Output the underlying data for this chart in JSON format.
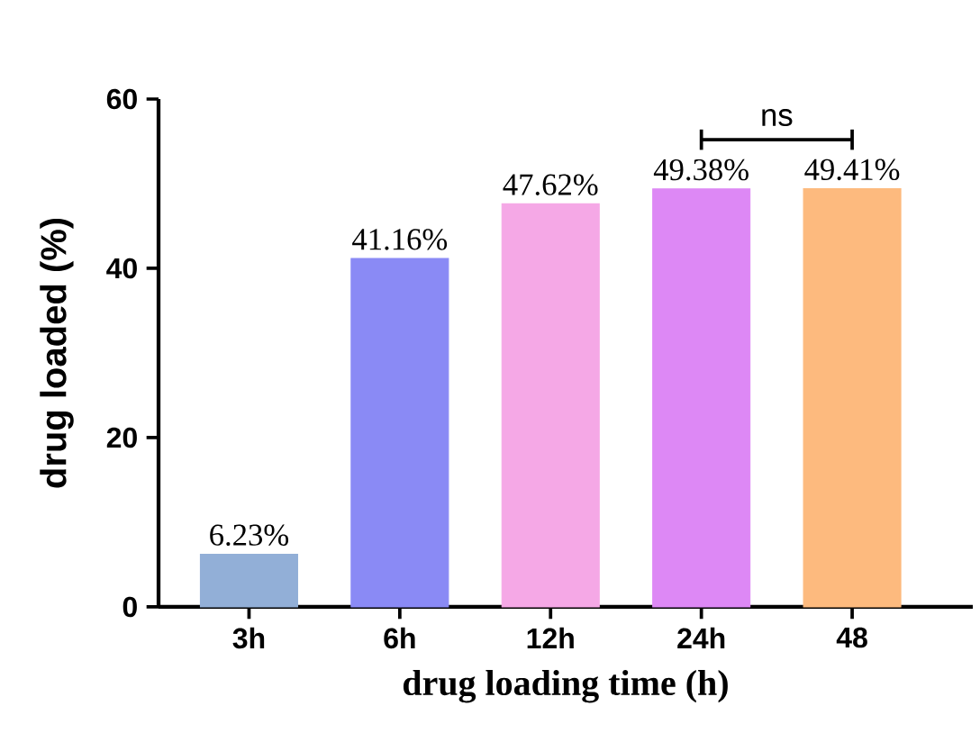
{
  "chart_data": {
    "type": "bar",
    "xlabel": "drug loading time (h)",
    "ylabel": "drug loaded (%)",
    "categories": [
      "3h",
      "6h",
      "12h",
      "24h",
      "48"
    ],
    "values": [
      6.23,
      41.16,
      47.62,
      49.38,
      49.41
    ],
    "value_labels": [
      "6.23%",
      "41.16%",
      "47.62%",
      "49.38%",
      "49.41%"
    ],
    "colors": [
      "#92afd7",
      "#8a8af5",
      "#f5a8e6",
      "#dd88f5",
      "#fdba7e"
    ],
    "ylim": [
      0,
      60
    ],
    "yticks": [
      0,
      20,
      40,
      60
    ],
    "annotations": [
      "ns"
    ]
  }
}
